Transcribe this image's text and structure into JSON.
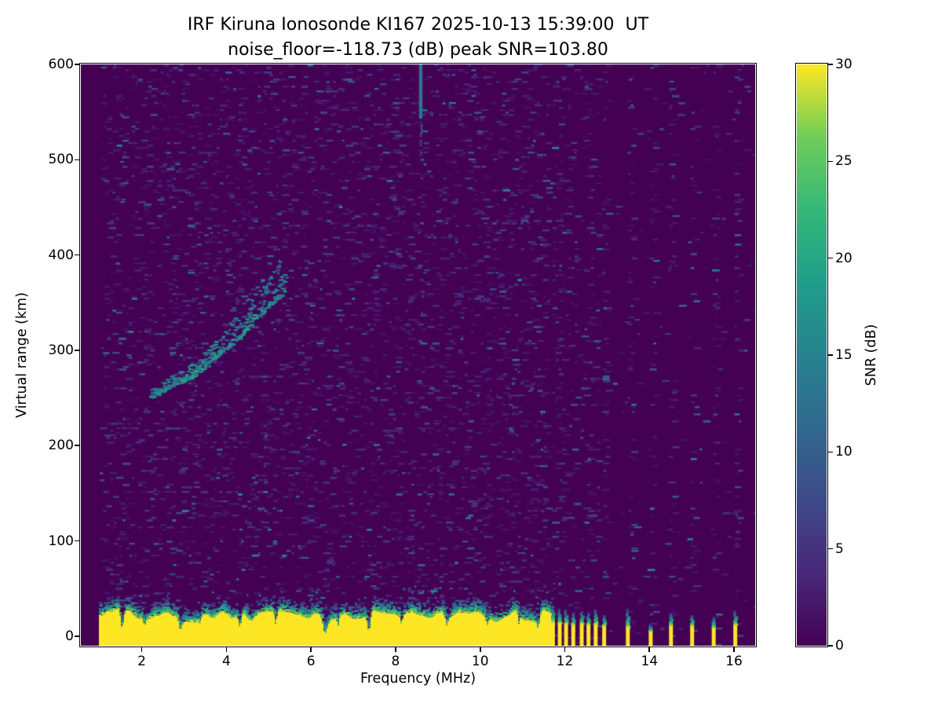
{
  "figure": {
    "title": "IRF Kiruna Ionosonde KI167 2025-10-13 15:39:00  UT",
    "subtitle": "noise_floor=-118.73 (dB) peak SNR=103.80"
  },
  "chart_data": {
    "type": "heatmap",
    "title": "IRF Kiruna Ionosonde KI167 2025-10-13 15:39:00  UT",
    "subtitle": "noise_floor=-118.73 (dB) peak SNR=103.80",
    "station": "KI167",
    "timestamp_ut": "2025-10-13 15:39:00",
    "noise_floor_db": -118.73,
    "peak_snr_db": 103.8,
    "xlabel": "Frequency (MHz)",
    "ylabel": "Virtual range (km)",
    "xlim": [
      0.56,
      16.5
    ],
    "ylim": [
      -10,
      600
    ],
    "xticks": [
      2,
      4,
      6,
      8,
      10,
      12,
      14,
      16
    ],
    "yticks": [
      0,
      100,
      200,
      300,
      400,
      500,
      600
    ],
    "grid": false,
    "colorbar": {
      "label": "SNR (dB)",
      "min": 0,
      "max": 30,
      "ticks": [
        0,
        5,
        10,
        15,
        20,
        25,
        30
      ],
      "colormap": "viridis",
      "position": "right"
    },
    "viridis_stops": [
      [
        0.0,
        68,
        1,
        84
      ],
      [
        0.125,
        72,
        40,
        120
      ],
      [
        0.25,
        62,
        74,
        137
      ],
      [
        0.375,
        49,
        104,
        142
      ],
      [
        0.5,
        38,
        130,
        142
      ],
      [
        0.625,
        31,
        158,
        137
      ],
      [
        0.75,
        53,
        183,
        121
      ],
      [
        0.875,
        110,
        206,
        88
      ],
      [
        1.0,
        253,
        231,
        37
      ]
    ],
    "features": {
      "background_snr_db": 0,
      "speckle_noise": {
        "freq_min": 0.95,
        "dense_freq_max": 11.55,
        "dense_density": 0.105,
        "sparse_density": 0.012,
        "stripe_density": 0.1,
        "mean_snr_db": 2.6,
        "max_snr_db": 15
      },
      "ground_band": {
        "freq_min": 0.98,
        "freq_max": 11.68,
        "top_km_mean": 21,
        "top_km_jitter": 7,
        "snr_db": 30,
        "notches": [
          {
            "freq": 1.52,
            "width": 0.05,
            "floor_km": 8
          },
          {
            "freq": 2.05,
            "width": 0.04,
            "floor_km": 12
          },
          {
            "freq": 2.9,
            "width": 0.06,
            "floor_km": 7
          },
          {
            "freq": 3.35,
            "width": 0.04,
            "floor_km": 13
          },
          {
            "freq": 4.3,
            "width": 0.05,
            "floor_km": 10
          },
          {
            "freq": 5.15,
            "width": 0.04,
            "floor_km": 13
          },
          {
            "freq": 6.32,
            "width": 0.06,
            "floor_km": 3
          },
          {
            "freq": 6.62,
            "width": 0.03,
            "floor_km": 11
          },
          {
            "freq": 7.35,
            "width": 0.05,
            "floor_km": 5
          },
          {
            "freq": 8.12,
            "width": 0.03,
            "floor_km": 13
          },
          {
            "freq": 9.2,
            "width": 0.04,
            "floor_km": 11
          },
          {
            "freq": 10.15,
            "width": 0.04,
            "floor_km": 12
          },
          {
            "freq": 10.9,
            "width": 0.03,
            "floor_km": 13
          },
          {
            "freq": 11.35,
            "width": 0.05,
            "floor_km": 9
          }
        ]
      },
      "rfi_bars": [
        {
          "freq": 11.72,
          "yellow_top_km": 16,
          "cap_top_km": 34
        },
        {
          "freq": 11.88,
          "yellow_top_km": 15,
          "cap_top_km": 30
        },
        {
          "freq": 12.03,
          "yellow_top_km": 14,
          "cap_top_km": 30
        },
        {
          "freq": 12.2,
          "yellow_top_km": 13,
          "cap_top_km": 26
        },
        {
          "freq": 12.4,
          "yellow_top_km": 14,
          "cap_top_km": 28
        },
        {
          "freq": 12.56,
          "yellow_top_km": 13,
          "cap_top_km": 26
        },
        {
          "freq": 12.73,
          "yellow_top_km": 14,
          "cap_top_km": 30
        },
        {
          "freq": 12.93,
          "yellow_top_km": 12,
          "cap_top_km": 24
        },
        {
          "freq": 13.49,
          "yellow_top_km": 11,
          "cap_top_km": 30
        },
        {
          "freq": 14.03,
          "yellow_top_km": 6,
          "cap_top_km": 14
        },
        {
          "freq": 14.51,
          "yellow_top_km": 12,
          "cap_top_km": 26
        },
        {
          "freq": 15.01,
          "yellow_top_km": 12,
          "cap_top_km": 24
        },
        {
          "freq": 15.52,
          "yellow_top_km": 10,
          "cap_top_km": 22
        },
        {
          "freq": 16.03,
          "yellow_top_km": 13,
          "cap_top_km": 28
        }
      ],
      "rfi_stripes": [
        11.72,
        11.88,
        12.03,
        12.2,
        12.4,
        12.56,
        12.73,
        12.93,
        13.49,
        14.03,
        14.51,
        15.01,
        15.52,
        16.03
      ],
      "echo_trace": {
        "freq_range": [
          2.2,
          5.35
        ],
        "base_km": [
          [
            2.2,
            250
          ],
          [
            2.6,
            261
          ],
          [
            3.0,
            268
          ],
          [
            3.4,
            279
          ],
          [
            3.8,
            295
          ],
          [
            4.2,
            309
          ],
          [
            4.6,
            330
          ],
          [
            5.0,
            347
          ],
          [
            5.35,
            361
          ]
        ],
        "spread_km": [
          [
            2.2,
            10
          ],
          [
            3.0,
            13
          ],
          [
            3.8,
            20
          ],
          [
            4.4,
            32
          ],
          [
            5.35,
            42
          ]
        ],
        "snr_db_range": [
          8,
          21
        ],
        "bright_freq_bands": [
          [
            2.9,
            3.8
          ],
          [
            4.35,
            4.65
          ]
        ]
      },
      "vertical_streak": {
        "freq": 8.59,
        "km_range": [
          543,
          600
        ],
        "snr_db": 13,
        "faint_tail_km": 505
      }
    }
  }
}
